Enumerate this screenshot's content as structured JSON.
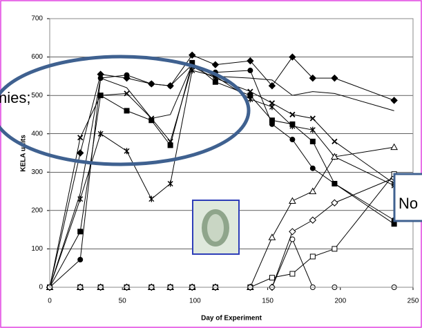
{
  "chart_data": {
    "type": "line",
    "xlabel": "Day of Experiment",
    "ylabel": "KELA units",
    "x": [
      0,
      21,
      35,
      53,
      70,
      83,
      98,
      114,
      138,
      153,
      167,
      181,
      196,
      237
    ],
    "xlim": [
      0,
      250
    ],
    "xticks": [
      0,
      50,
      100,
      150,
      200,
      250
    ],
    "ylim": [
      0,
      700
    ],
    "yticks": [
      0,
      100,
      200,
      300,
      400,
      500,
      600,
      700
    ],
    "grid": true,
    "series": [
      {
        "color": "#000000",
        "marker": "diamond",
        "values": [
          0,
          350,
          555,
          545,
          530,
          525,
          605,
          580,
          590,
          525,
          600,
          545,
          545,
          487
        ]
      },
      {
        "color": "#000000",
        "marker": "circle",
        "values": [
          0,
          72,
          545,
          553,
          530,
          525,
          580,
          560,
          565,
          425,
          385,
          310,
          270,
          175
        ]
      },
      {
        "color": "#000000",
        "marker": "square",
        "values": [
          0,
          145,
          500,
          460,
          435,
          370,
          585,
          535,
          500,
          435,
          425,
          380,
          270,
          165
        ]
      },
      {
        "color": "#000000",
        "marker": "x",
        "values": [
          0,
          390,
          500,
          505,
          440,
          380,
          575,
          545,
          510,
          480,
          450,
          440,
          380,
          270
        ]
      },
      {
        "color": "#000000",
        "marker": "none",
        "values": [
          0,
          245,
          545,
          520,
          440,
          450,
          580,
          550,
          545,
          540,
          500,
          510,
          505,
          460
        ]
      },
      {
        "color": "#000000",
        "marker": "star",
        "values": [
          0,
          230,
          400,
          355,
          230,
          270,
          565,
          550,
          490,
          470,
          420,
          410,
          340,
          265
        ]
      },
      {
        "color": "#000000",
        "marker": "triangle-open",
        "values": [
          0,
          0,
          0,
          0,
          0,
          0,
          0,
          0,
          0,
          130,
          225,
          250,
          340,
          365
        ]
      },
      {
        "color": "#000000",
        "marker": "diamond-open",
        "values": [
          0,
          0,
          0,
          0,
          0,
          0,
          0,
          0,
          0,
          0,
          145,
          175,
          220,
          285
        ]
      },
      {
        "color": "#000000",
        "marker": "square-open",
        "values": [
          0,
          0,
          0,
          0,
          0,
          0,
          0,
          0,
          0,
          25,
          35,
          80,
          100,
          295
        ]
      },
      {
        "color": "#000000",
        "marker": "circle-open",
        "values": [
          0,
          0,
          0,
          0,
          0,
          0,
          0,
          0,
          0,
          0,
          125,
          0,
          0,
          0
        ]
      }
    ],
    "annotations": [
      "nies;",
      "No"
    ]
  }
}
